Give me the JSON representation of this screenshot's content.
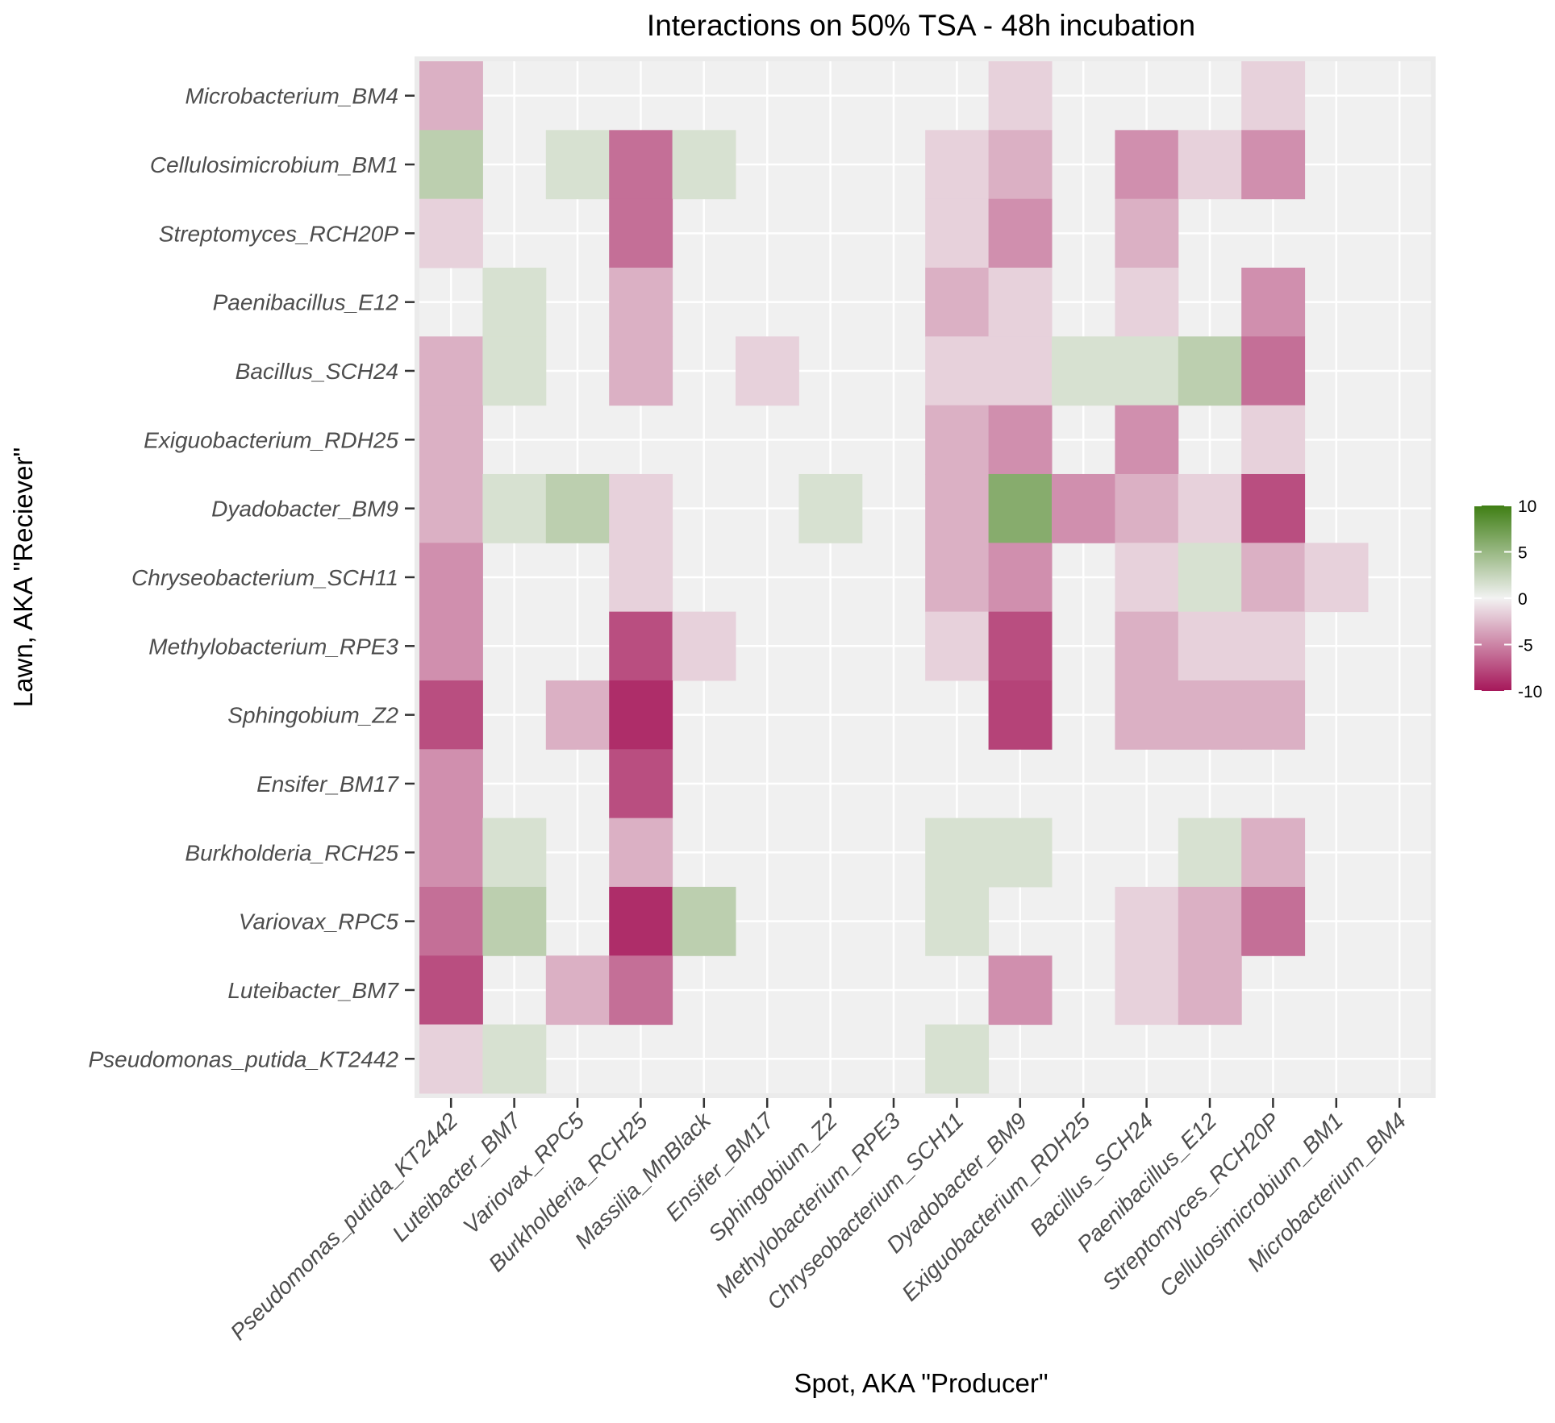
{
  "chart_data": {
    "type": "heatmap",
    "title": "Interactions on 50% TSA - 48h incubation",
    "xlabel": "Spot, AKA \"Producer\"",
    "ylabel": "Lawn, AKA \"Reciever\"",
    "x_categories": [
      "Pseudomonas_putida_KT2442",
      "Luteibacter_BM7",
      "Variovax_RPC5",
      "Burkholderia_RCH25",
      "Massilia_MnBlack",
      "Ensifer_BM17",
      "Sphingobium_Z2",
      "Methylobacterium_RPE3",
      "Chryseobacterium_SCH11",
      "Dyadobacter_BM9",
      "Exiguobacterium_RDH25",
      "Bacillus_SCH24",
      "Paenibacillus_E12",
      "Streptomyces_RCH20P",
      "Cellulosimicrobium_BM1",
      "Microbacterium_BM4"
    ],
    "y_categories": [
      "Microbacterium_BM4",
      "Cellulosimicrobium_BM1",
      "Streptomyces_RCH20P",
      "Paenibacillus_E12",
      "Bacillus_SCH24",
      "Exiguobacterium_RDH25",
      "Dyadobacter_BM9",
      "Chryseobacterium_SCH11",
      "Methylobacterium_RPE3",
      "Sphingobium_Z2",
      "Ensifer_BM17",
      "Burkholderia_RCH25",
      "Variovax_RPC5",
      "Luteibacter_BM7",
      "Pseudomonas_putida_KT2442"
    ],
    "values": [
      [
        -3,
        0,
        0,
        0,
        0,
        0,
        0,
        0,
        0,
        -1.5,
        0,
        0,
        0,
        -1.5,
        0,
        0
      ],
      [
        3,
        0,
        1.5,
        -6,
        1.5,
        0,
        0,
        0,
        -1.5,
        -3,
        0,
        -4.5,
        -1.5,
        -4.5,
        0,
        0
      ],
      [
        -1.5,
        0,
        0,
        -6,
        0,
        0,
        0,
        0,
        -1.5,
        -4.5,
        0,
        -3,
        0,
        0,
        0,
        0
      ],
      [
        0,
        1.5,
        0,
        -3,
        0,
        0,
        0,
        0,
        -3,
        -1.5,
        0,
        -1.5,
        0,
        -4.5,
        0,
        0
      ],
      [
        -3,
        1.5,
        0,
        -3,
        0,
        -1.5,
        0,
        0,
        -1.5,
        -1.5,
        1.5,
        1.5,
        3,
        -6,
        0,
        0
      ],
      [
        -3,
        0,
        0,
        0,
        0,
        0,
        0,
        0,
        -3,
        -4.5,
        0,
        -4.5,
        0,
        -1.5,
        0,
        0
      ],
      [
        -3,
        1.5,
        3,
        -1.5,
        0,
        0,
        1.5,
        0,
        -3,
        6,
        -4.5,
        -3,
        -1.5,
        -7.5,
        0,
        0
      ],
      [
        -4.5,
        0,
        0,
        -1.5,
        0,
        0,
        0,
        0,
        -3,
        -4.5,
        0,
        -1.5,
        1.5,
        -3,
        -1.5,
        0
      ],
      [
        -4.5,
        0,
        0,
        -7.5,
        -1.5,
        0,
        0,
        0,
        -1.5,
        -7.5,
        0,
        -3,
        -1.5,
        -1.5,
        0,
        0
      ],
      [
        -7.5,
        0,
        -3,
        -9,
        0,
        0,
        0,
        0,
        0,
        -8,
        0,
        -3,
        -3,
        -3,
        0,
        0
      ],
      [
        -4.5,
        0,
        0,
        -7.5,
        0,
        0,
        0,
        0,
        0,
        0,
        0,
        0,
        0,
        0,
        0,
        0
      ],
      [
        -4.5,
        1.5,
        0,
        -3,
        0,
        0,
        0,
        0,
        1.5,
        1.5,
        0,
        0,
        1.5,
        -3,
        0,
        0
      ],
      [
        -6,
        3,
        0,
        -9,
        3,
        0,
        0,
        0,
        1.5,
        0,
        0,
        -1.5,
        -3,
        -6,
        0,
        0
      ],
      [
        -7.5,
        0,
        -3,
        -6,
        0,
        0,
        0,
        0,
        0,
        -4.5,
        0,
        -1.5,
        -3,
        0,
        0,
        0
      ],
      [
        -1.5,
        1.5,
        0,
        0,
        0,
        0,
        0,
        0,
        1.5,
        0,
        0,
        0,
        0,
        0,
        0,
        0
      ]
    ],
    "color_scale": {
      "min": -10,
      "mid": 0,
      "max": 10,
      "low_color": "#a6175a",
      "mid_color": "#f2f2f2",
      "high_color": "#3f7e14",
      "ticks": [
        "10",
        "5",
        "0",
        "-5",
        "-10"
      ]
    },
    "panel_background": "#f0f0f0",
    "grid": true,
    "legend_position": "right"
  }
}
